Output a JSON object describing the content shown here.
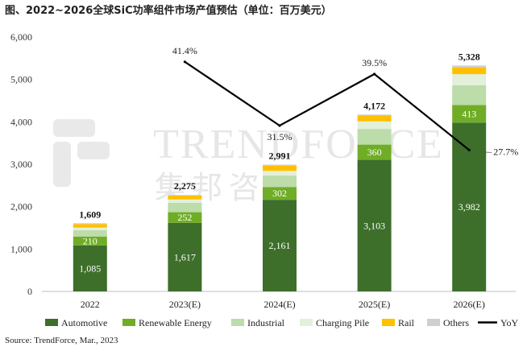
{
  "title": "图、2022~2026全球SiC功率组件市场产值预估（单位：百万美元）",
  "source": "Source: TrendForce, Mar., 2023",
  "watermark": {
    "text_en": "TRENDFORCE",
    "text_zh": "集邦咨询"
  },
  "chart_data": {
    "type": "bar",
    "stacked": true,
    "categories": [
      "2022",
      "2023(E)",
      "2024(E)",
      "2025(E)",
      "2026(E)"
    ],
    "ylim": [
      0,
      6000
    ],
    "yticks": [
      "0",
      "1,000",
      "2,000",
      "3,000",
      "4,000",
      "5,000",
      "6,000"
    ],
    "series": [
      {
        "name": "Automotive",
        "color": "#3d6f2b",
        "values": [
          1085,
          1617,
          2161,
          3103,
          3982
        ],
        "labels": [
          "1,085",
          "1,617",
          "2,161",
          "3,103",
          "3,982"
        ]
      },
      {
        "name": "Renewable Energy",
        "color": "#70ad27",
        "values": [
          210,
          252,
          302,
          360,
          413
        ],
        "labels": [
          "210",
          "252",
          "302",
          "360",
          "413"
        ]
      },
      {
        "name": "Industrial",
        "color": "#bcdcaa",
        "values": [
          150,
          220,
          270,
          370,
          470
        ]
      },
      {
        "name": "Charging Pile",
        "color": "#e3f0da",
        "values": [
          60,
          80,
          110,
          180,
          260
        ]
      },
      {
        "name": "Rail",
        "color": "#ffc000",
        "values": [
          85,
          90,
          120,
          135,
          160
        ]
      },
      {
        "name": "Others",
        "color": "#cfcfcf",
        "values": [
          19,
          16,
          28,
          24,
          43
        ]
      }
    ],
    "totals": [
      1609,
      2275,
      2991,
      4172,
      5328
    ],
    "total_labels": [
      "1,609",
      "2,275",
      "2,991",
      "4,172",
      "5,328"
    ],
    "yoy": {
      "name": "YoY",
      "color": "#000000",
      "categories": [
        "2023(E)",
        "2024(E)",
        "2025(E)",
        "2026(E)"
      ],
      "values": [
        41.4,
        31.5,
        39.5,
        27.7
      ],
      "labels": [
        "41.4%",
        "31.5%",
        "39.5%",
        "27.7%"
      ]
    },
    "legend_position": "bottom",
    "grid": false
  }
}
